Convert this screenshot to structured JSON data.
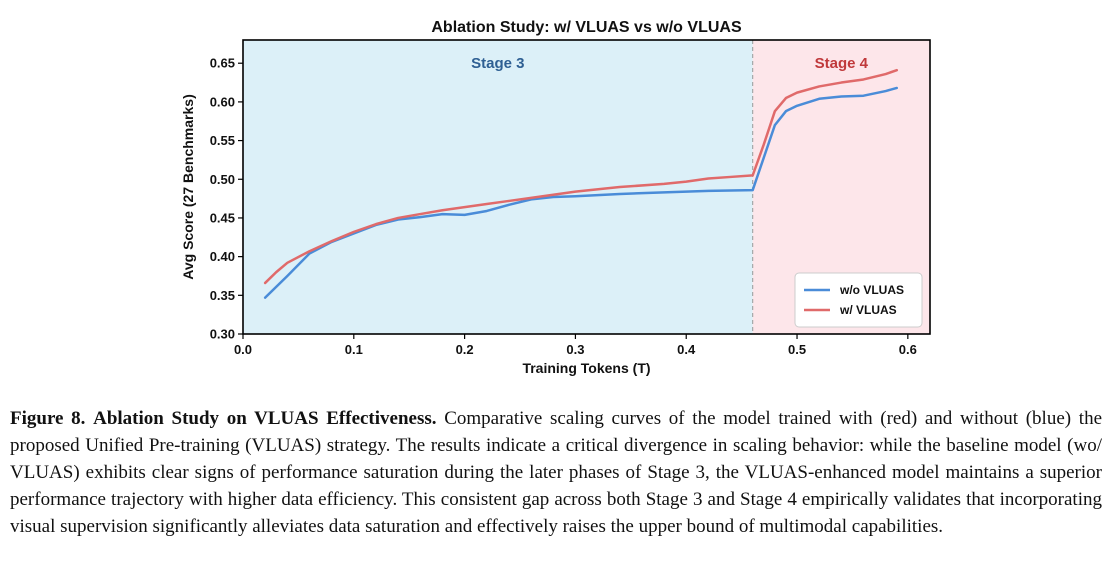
{
  "chart_data": {
    "type": "line",
    "title": "Ablation Study: w/ VLUAS vs w/o VLUAS",
    "xlabel": "Training Tokens (T)",
    "ylabel": "Avg Score (27 Benchmarks)",
    "xlim": [
      0.0,
      0.62
    ],
    "ylim": [
      0.3,
      0.68
    ],
    "xticks": [
      0.0,
      0.1,
      0.2,
      0.3,
      0.4,
      0.5,
      0.6
    ],
    "xtick_labels": [
      "0.0",
      "0.1",
      "0.2",
      "0.3",
      "0.4",
      "0.5",
      "0.6"
    ],
    "yticks": [
      0.3,
      0.35,
      0.4,
      0.45,
      0.5,
      0.55,
      0.6,
      0.65
    ],
    "ytick_labels": [
      "0.30",
      "0.35",
      "0.40",
      "0.45",
      "0.50",
      "0.55",
      "0.60",
      "0.65"
    ],
    "grid": false,
    "legend_position": "bottom-right",
    "regions": [
      {
        "label": "Stage 3",
        "x_range": [
          0.0,
          0.46
        ],
        "fill": "#dcf0f8",
        "label_color": "#2e5f93"
      },
      {
        "label": "Stage 4",
        "x_range": [
          0.46,
          0.62
        ],
        "fill": "#fde6ea",
        "label_color": "#c0393b"
      }
    ],
    "divider_x": 0.46,
    "series": [
      {
        "name": "w/o VLUAS",
        "color": "#4a8cd8",
        "x": [
          0.02,
          0.04,
          0.06,
          0.08,
          0.1,
          0.12,
          0.14,
          0.16,
          0.18,
          0.2,
          0.22,
          0.24,
          0.26,
          0.28,
          0.3,
          0.34,
          0.38,
          0.42,
          0.46,
          0.47,
          0.48,
          0.49,
          0.5,
          0.52,
          0.54,
          0.56,
          0.58,
          0.59
        ],
        "y": [
          0.347,
          0.375,
          0.404,
          0.419,
          0.43,
          0.441,
          0.448,
          0.451,
          0.455,
          0.454,
          0.459,
          0.467,
          0.474,
          0.477,
          0.478,
          0.481,
          0.483,
          0.485,
          0.486,
          0.528,
          0.57,
          0.588,
          0.595,
          0.604,
          0.607,
          0.608,
          0.614,
          0.618
        ]
      },
      {
        "name": "w/ VLUAS",
        "color": "#e06a6a",
        "x": [
          0.02,
          0.03,
          0.04,
          0.06,
          0.08,
          0.1,
          0.12,
          0.14,
          0.16,
          0.18,
          0.2,
          0.22,
          0.24,
          0.26,
          0.28,
          0.3,
          0.34,
          0.38,
          0.4,
          0.42,
          0.44,
          0.46,
          0.47,
          0.48,
          0.49,
          0.5,
          0.52,
          0.54,
          0.56,
          0.58,
          0.59
        ],
        "y": [
          0.366,
          0.38,
          0.392,
          0.407,
          0.42,
          0.432,
          0.442,
          0.45,
          0.455,
          0.46,
          0.464,
          0.468,
          0.472,
          0.476,
          0.48,
          0.484,
          0.49,
          0.494,
          0.497,
          0.501,
          0.503,
          0.505,
          0.545,
          0.588,
          0.605,
          0.612,
          0.62,
          0.625,
          0.629,
          0.636,
          0.641
        ]
      }
    ]
  },
  "caption": {
    "label": "Figure 8.",
    "title": "Ablation Study on VLUAS Effectiveness.",
    "body": "Comparative scaling curves of the model trained with (red) and without (blue) the proposed Unified Pre-training (VLUAS) strategy. The results indicate a critical divergence in scaling behavior: while the baseline model (wo/ VLUAS) exhibits clear signs of performance saturation during the later phases of Stage 3, the VLUAS-enhanced model maintains a superior performance trajectory with higher data efficiency. This consistent gap across both Stage 3 and Stage 4 empirically validates that incorporating visual supervision significantly alleviates data saturation and effectively raises the upper bound of multimodal capabilities."
  }
}
